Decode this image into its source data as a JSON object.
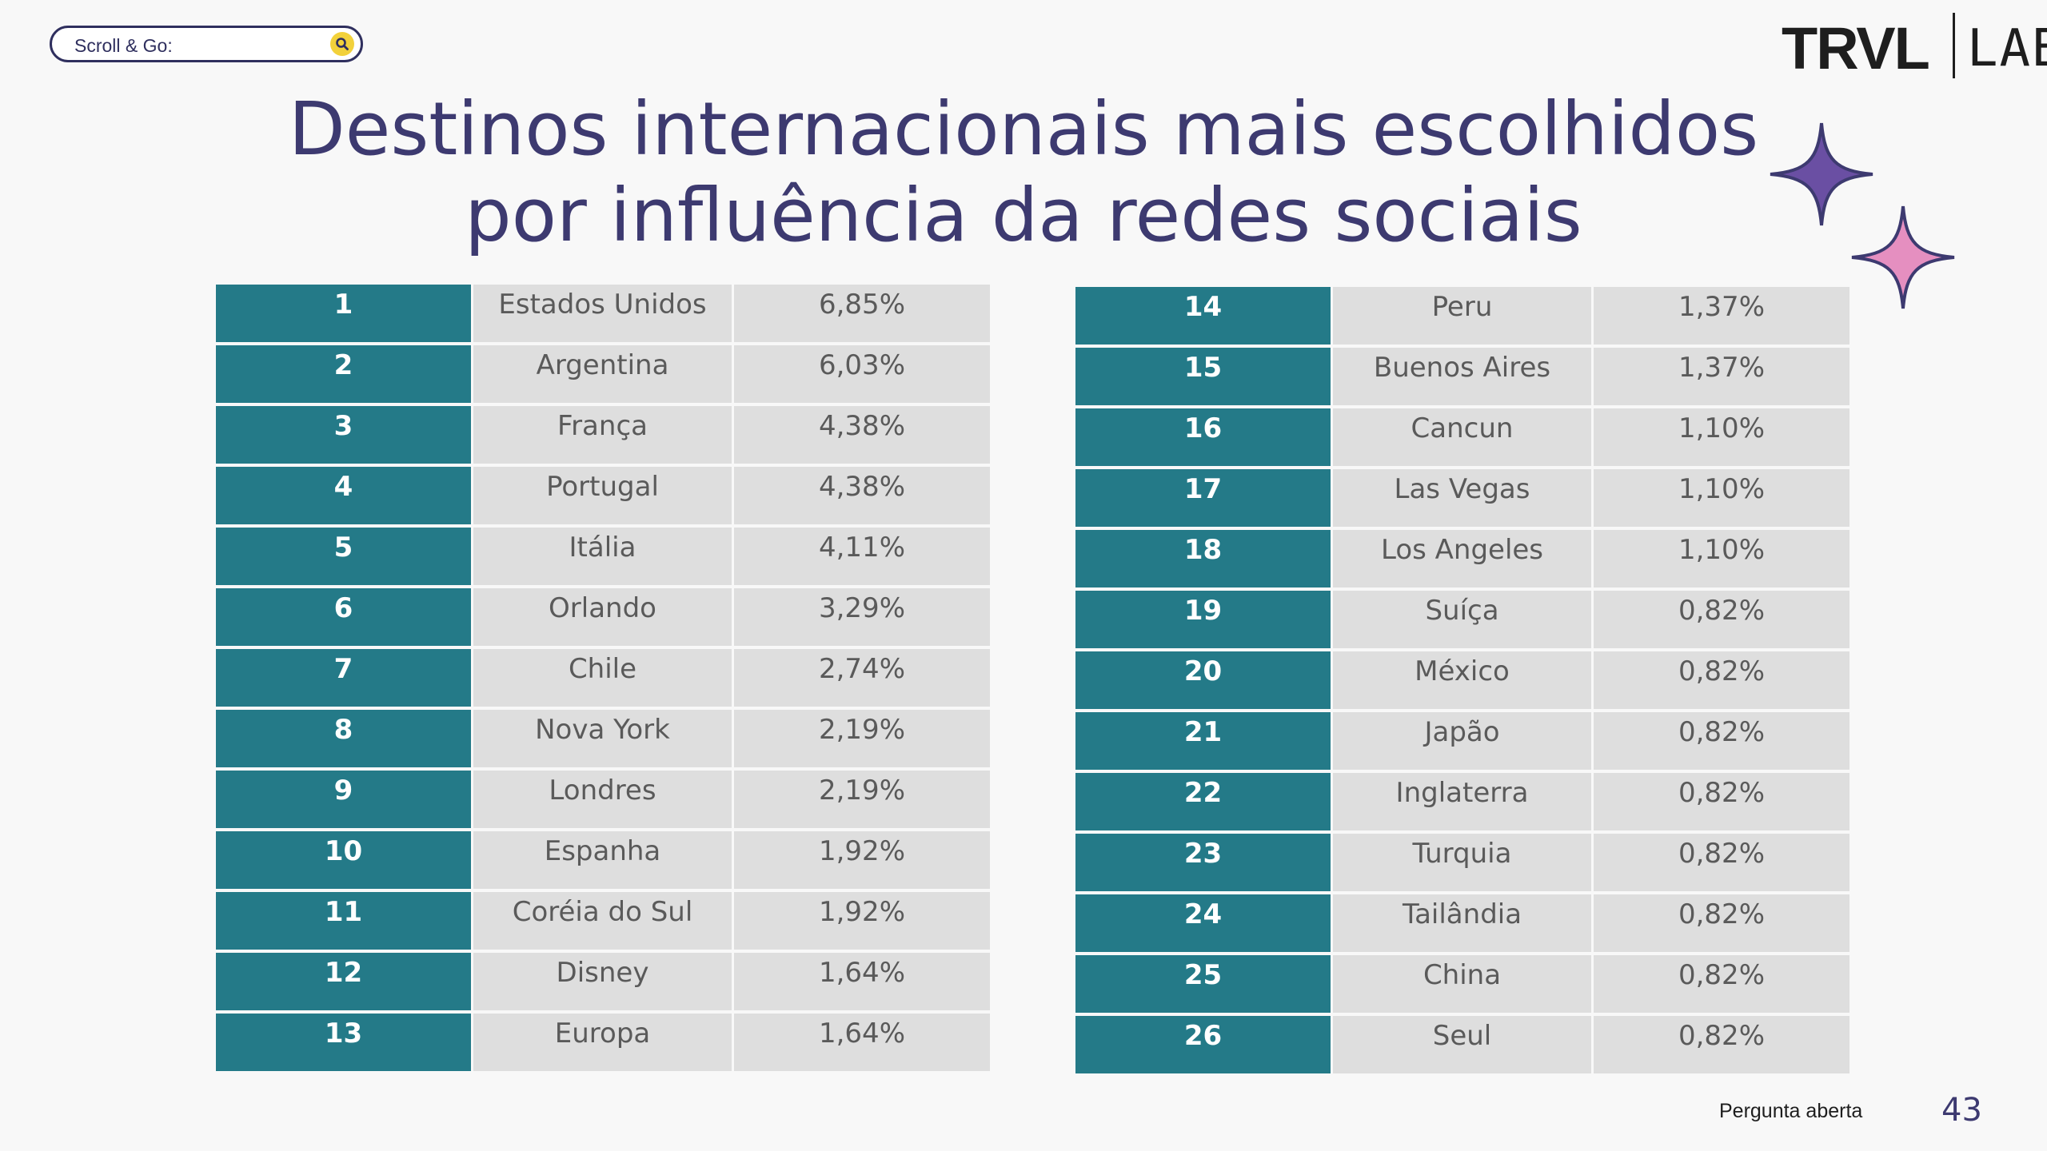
{
  "search": {
    "label": "Scroll & Go:",
    "icon": "search-icon"
  },
  "brand": {
    "main": "TRVL",
    "lab": "LAB"
  },
  "title": {
    "line1": "Destinos internacionais mais escolhidos",
    "line2": "por influência da redes sociais"
  },
  "colors": {
    "title": "#3d3a70",
    "rank_cell": "#247a88",
    "data_cell": "#dedede",
    "sparkle_purple": "#6a4fa3",
    "sparkle_pink": "#e58fc0"
  },
  "table_left": [
    {
      "rank": "1",
      "destination": "Estados Unidos",
      "percent": "6,85%"
    },
    {
      "rank": "2",
      "destination": "Argentina",
      "percent": "6,03%"
    },
    {
      "rank": "3",
      "destination": "França",
      "percent": "4,38%"
    },
    {
      "rank": "4",
      "destination": "Portugal",
      "percent": "4,38%"
    },
    {
      "rank": "5",
      "destination": "Itália",
      "percent": "4,11%"
    },
    {
      "rank": "6",
      "destination": "Orlando",
      "percent": "3,29%"
    },
    {
      "rank": "7",
      "destination": "Chile",
      "percent": "2,74%"
    },
    {
      "rank": "8",
      "destination": "Nova York",
      "percent": "2,19%"
    },
    {
      "rank": "9",
      "destination": "Londres",
      "percent": "2,19%"
    },
    {
      "rank": "10",
      "destination": "Espanha",
      "percent": "1,92%"
    },
    {
      "rank": "11",
      "destination": "Coréia do Sul",
      "percent": "1,92%"
    },
    {
      "rank": "12",
      "destination": "Disney",
      "percent": "1,64%"
    },
    {
      "rank": "13",
      "destination": "Europa",
      "percent": "1,64%"
    }
  ],
  "table_right": [
    {
      "rank": "14",
      "destination": "Peru",
      "percent": "1,37%"
    },
    {
      "rank": "15",
      "destination": "Buenos Aires",
      "percent": "1,37%"
    },
    {
      "rank": "16",
      "destination": "Cancun",
      "percent": "1,10%"
    },
    {
      "rank": "17",
      "destination": "Las Vegas",
      "percent": "1,10%"
    },
    {
      "rank": "18",
      "destination": "Los Angeles",
      "percent": "1,10%"
    },
    {
      "rank": "19",
      "destination": "Suíça",
      "percent": "0,82%"
    },
    {
      "rank": "20",
      "destination": "México",
      "percent": "0,82%"
    },
    {
      "rank": "21",
      "destination": "Japão",
      "percent": "0,82%"
    },
    {
      "rank": "22",
      "destination": "Inglaterra",
      "percent": "0,82%"
    },
    {
      "rank": "23",
      "destination": "Turquia",
      "percent": "0,82%"
    },
    {
      "rank": "24",
      "destination": "Tailândia",
      "percent": "0,82%"
    },
    {
      "rank": "25",
      "destination": "China",
      "percent": "0,82%"
    },
    {
      "rank": "26",
      "destination": "Seul",
      "percent": "0,82%"
    }
  ],
  "footer": {
    "note": "Pergunta aberta",
    "page_number": "43"
  }
}
